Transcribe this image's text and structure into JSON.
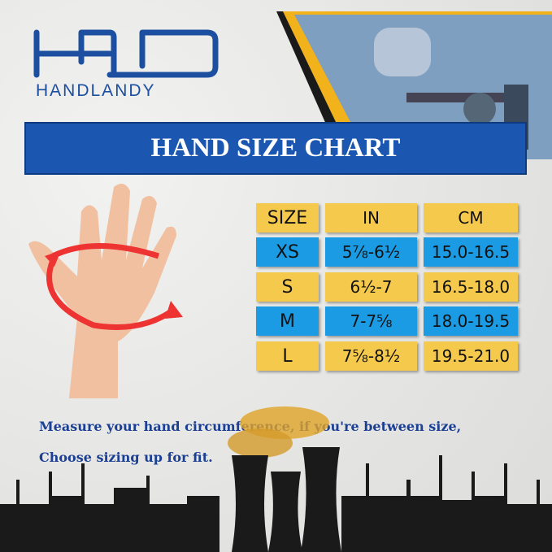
{
  "brand": {
    "name": "HANDLANDY",
    "logo_text": "HOD"
  },
  "banner": {
    "title": "HAND SIZE CHART"
  },
  "table": {
    "headers": [
      "SIZE",
      "IN",
      "CM"
    ],
    "rows": [
      [
        "XS",
        "5⅞-6½",
        "15.0-16.5"
      ],
      [
        "S",
        "6½-7",
        "16.5-18.0"
      ],
      [
        "M",
        "7-7⅝",
        "18.0-19.5"
      ],
      [
        "L",
        "7⅝-8½",
        "19.5-21.0"
      ]
    ]
  },
  "note": {
    "line1": "Measure your hand circumference, if you're between size,",
    "line2": "Choose sizing up for fit."
  },
  "colors": {
    "blue": "#1b56b0",
    "cell_blue": "#1a9be3",
    "cell_yellow": "#f5c94c"
  }
}
